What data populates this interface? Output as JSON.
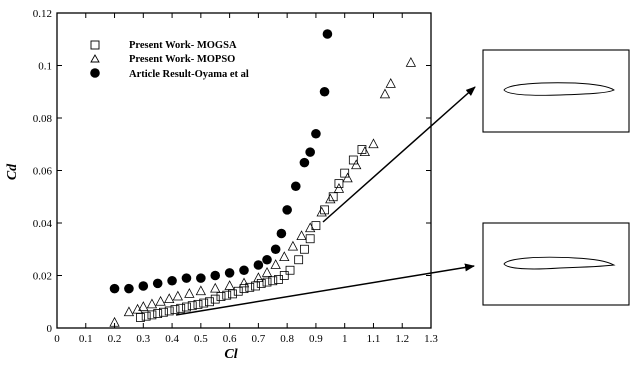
{
  "chart_data": {
    "type": "scatter",
    "xlabel": "Cl",
    "ylabel": "Cd",
    "xlim": [
      0,
      1.3
    ],
    "ylim": [
      0,
      0.12
    ],
    "xticks": [
      0,
      0.1,
      0.2,
      0.3,
      0.4,
      0.5,
      0.6,
      0.7,
      0.8,
      0.9,
      1,
      1.1,
      1.2,
      1.3
    ],
    "yticks": [
      0,
      0.02,
      0.04,
      0.06,
      0.08,
      0.1,
      0.12
    ],
    "xtick_labels": [
      "0",
      "0.1",
      "0.2",
      "0.3",
      "0.4",
      "0.5",
      "0.6",
      "0.7",
      "0.8",
      "0.9",
      "1",
      "1.1",
      "1.2",
      "1.3"
    ],
    "ytick_labels": [
      "0",
      "0.02",
      "0.04",
      "0.06",
      "0.08",
      "0.1",
      "0.12"
    ],
    "grid": false,
    "legend_position": "top-left",
    "series": [
      {
        "name": "Present Work- MOGSA",
        "marker": "square-open",
        "color": "#000000",
        "points": [
          [
            0.29,
            0.004
          ],
          [
            0.31,
            0.0045
          ],
          [
            0.33,
            0.005
          ],
          [
            0.35,
            0.0055
          ],
          [
            0.37,
            0.006
          ],
          [
            0.39,
            0.0065
          ],
          [
            0.41,
            0.007
          ],
          [
            0.43,
            0.0075
          ],
          [
            0.45,
            0.008
          ],
          [
            0.47,
            0.0085
          ],
          [
            0.49,
            0.009
          ],
          [
            0.51,
            0.0095
          ],
          [
            0.53,
            0.01
          ],
          [
            0.55,
            0.011
          ],
          [
            0.57,
            0.012
          ],
          [
            0.59,
            0.0125
          ],
          [
            0.61,
            0.013
          ],
          [
            0.63,
            0.014
          ],
          [
            0.65,
            0.015
          ],
          [
            0.67,
            0.0155
          ],
          [
            0.69,
            0.016
          ],
          [
            0.71,
            0.017
          ],
          [
            0.73,
            0.0175
          ],
          [
            0.75,
            0.018
          ],
          [
            0.77,
            0.0185
          ],
          [
            0.79,
            0.02
          ],
          [
            0.81,
            0.022
          ],
          [
            0.84,
            0.026
          ],
          [
            0.86,
            0.03
          ],
          [
            0.88,
            0.034
          ],
          [
            0.9,
            0.039
          ],
          [
            0.93,
            0.045
          ],
          [
            0.96,
            0.05
          ],
          [
            0.98,
            0.055
          ],
          [
            1.0,
            0.059
          ],
          [
            1.03,
            0.064
          ],
          [
            1.06,
            0.068
          ]
        ]
      },
      {
        "name": "Present Work- MOPSO",
        "marker": "triangle-open",
        "color": "#000000",
        "points": [
          [
            0.2,
            0.002
          ],
          [
            0.25,
            0.006
          ],
          [
            0.28,
            0.007
          ],
          [
            0.3,
            0.008
          ],
          [
            0.33,
            0.009
          ],
          [
            0.36,
            0.01
          ],
          [
            0.39,
            0.011
          ],
          [
            0.42,
            0.012
          ],
          [
            0.46,
            0.013
          ],
          [
            0.5,
            0.014
          ],
          [
            0.55,
            0.015
          ],
          [
            0.6,
            0.016
          ],
          [
            0.65,
            0.017
          ],
          [
            0.7,
            0.019
          ],
          [
            0.73,
            0.021
          ],
          [
            0.76,
            0.024
          ],
          [
            0.79,
            0.027
          ],
          [
            0.82,
            0.031
          ],
          [
            0.85,
            0.035
          ],
          [
            0.88,
            0.038
          ],
          [
            0.92,
            0.044
          ],
          [
            0.95,
            0.049
          ],
          [
            0.98,
            0.053
          ],
          [
            1.01,
            0.057
          ],
          [
            1.04,
            0.062
          ],
          [
            1.07,
            0.067
          ],
          [
            1.1,
            0.07
          ],
          [
            1.14,
            0.089
          ],
          [
            1.16,
            0.093
          ],
          [
            1.23,
            0.101
          ]
        ]
      },
      {
        "name": "Article Result-Oyama et al",
        "marker": "circle-filled",
        "color": "#000000",
        "points": [
          [
            0.2,
            0.015
          ],
          [
            0.25,
            0.015
          ],
          [
            0.3,
            0.016
          ],
          [
            0.35,
            0.017
          ],
          [
            0.4,
            0.018
          ],
          [
            0.45,
            0.019
          ],
          [
            0.5,
            0.019
          ],
          [
            0.55,
            0.02
          ],
          [
            0.6,
            0.021
          ],
          [
            0.65,
            0.022
          ],
          [
            0.7,
            0.024
          ],
          [
            0.73,
            0.026
          ],
          [
            0.76,
            0.03
          ],
          [
            0.78,
            0.036
          ],
          [
            0.8,
            0.045
          ],
          [
            0.83,
            0.054
          ],
          [
            0.86,
            0.063
          ],
          [
            0.88,
            0.067
          ],
          [
            0.9,
            0.074
          ],
          [
            0.93,
            0.09
          ],
          [
            0.94,
            0.112
          ]
        ]
      }
    ]
  }
}
